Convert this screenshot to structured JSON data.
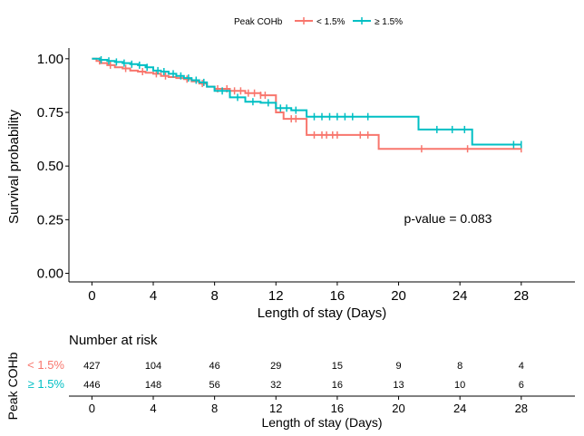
{
  "legend": {
    "title": "Peak COHb",
    "items": [
      {
        "label": "< 1.5%",
        "color": "#F8766D"
      },
      {
        "label": "≥ 1.5%",
        "color": "#00BFC4"
      }
    ]
  },
  "annotation": "p-value = 0.083",
  "risk_table": {
    "title": "Number at risk",
    "ylabel": "Peak COHb",
    "xlabel": "Length of stay (Days)",
    "rows": [
      {
        "label": "< 1.5%",
        "color": "#F8766D",
        "values": [
          "427",
          "104",
          "46",
          "29",
          "15",
          "9",
          "8",
          "4"
        ]
      },
      {
        "label": "≥ 1.5%",
        "color": "#00BFC4",
        "values": [
          "446",
          "148",
          "56",
          "32",
          "16",
          "13",
          "10",
          "6"
        ]
      }
    ]
  },
  "chart_data": {
    "type": "line",
    "subtype": "kaplan-meier step",
    "xlabel": "Length of stay (Days)",
    "ylabel": "Survival probability",
    "xlim": [
      -1.5,
      31.5
    ],
    "ylim": [
      -0.04,
      1.05
    ],
    "x_ticks": [
      "0",
      "4",
      "8",
      "12",
      "16",
      "20",
      "24",
      "28"
    ],
    "y_ticks": [
      "0.00",
      "0.25",
      "0.50",
      "0.75",
      "1.00"
    ],
    "grid": false,
    "legend_position": "top",
    "series": [
      {
        "name": "< 1.5%",
        "color": "#F8766D",
        "steps": [
          [
            0,
            1.0
          ],
          [
            0.3,
            0.99
          ],
          [
            0.6,
            0.98
          ],
          [
            1.0,
            0.97
          ],
          [
            1.5,
            0.96
          ],
          [
            2.0,
            0.955
          ],
          [
            2.5,
            0.945
          ],
          [
            3.0,
            0.94
          ],
          [
            3.5,
            0.935
          ],
          [
            4.0,
            0.93
          ],
          [
            4.5,
            0.92
          ],
          [
            5.0,
            0.915
          ],
          [
            5.5,
            0.91
          ],
          [
            6.0,
            0.905
          ],
          [
            6.5,
            0.895
          ],
          [
            7.0,
            0.885
          ],
          [
            7.5,
            0.87
          ],
          [
            8.0,
            0.86
          ],
          [
            9.0,
            0.85
          ],
          [
            10.0,
            0.84
          ],
          [
            11.0,
            0.83
          ],
          [
            12.0,
            0.75
          ],
          [
            12.5,
            0.72
          ],
          [
            14.0,
            0.645
          ],
          [
            18.7,
            0.58
          ],
          [
            28.0,
            0.58
          ]
        ],
        "censor_x": [
          0.5,
          1.2,
          2.2,
          3.3,
          4.2,
          4.8,
          6.2,
          7.2,
          8.2,
          8.8,
          9.3,
          9.7,
          10.2,
          10.6,
          11.0,
          11.3,
          13.0,
          13.3,
          14.5,
          15.0,
          15.3,
          15.7,
          16.0,
          17.5,
          18.0,
          21.5,
          24.5,
          28.0
        ]
      },
      {
        "name": "≥ 1.5%",
        "color": "#00BFC4",
        "steps": [
          [
            0,
            1.0
          ],
          [
            0.5,
            0.995
          ],
          [
            1.0,
            0.99
          ],
          [
            1.5,
            0.985
          ],
          [
            2.0,
            0.98
          ],
          [
            2.5,
            0.975
          ],
          [
            3.0,
            0.97
          ],
          [
            3.5,
            0.96
          ],
          [
            4.0,
            0.945
          ],
          [
            4.5,
            0.94
          ],
          [
            5.0,
            0.93
          ],
          [
            5.5,
            0.92
          ],
          [
            6.0,
            0.91
          ],
          [
            6.5,
            0.9
          ],
          [
            7.0,
            0.89
          ],
          [
            7.5,
            0.87
          ],
          [
            8.0,
            0.85
          ],
          [
            9.0,
            0.82
          ],
          [
            10.0,
            0.8
          ],
          [
            11.0,
            0.795
          ],
          [
            12.0,
            0.77
          ],
          [
            13.0,
            0.76
          ],
          [
            14.0,
            0.73
          ],
          [
            21.3,
            0.67
          ],
          [
            24.8,
            0.6
          ],
          [
            28.0,
            0.6
          ]
        ],
        "censor_x": [
          0.6,
          1.1,
          1.6,
          2.1,
          2.6,
          3.1,
          3.6,
          4.3,
          4.7,
          5.3,
          5.8,
          6.3,
          6.8,
          7.3,
          8.5,
          9.5,
          10.5,
          11.5,
          12.3,
          12.7,
          13.3,
          14.5,
          15.0,
          15.5,
          16.0,
          16.5,
          17.0,
          18.0,
          22.5,
          23.5,
          24.3,
          27.5,
          28.0
        ]
      }
    ]
  }
}
